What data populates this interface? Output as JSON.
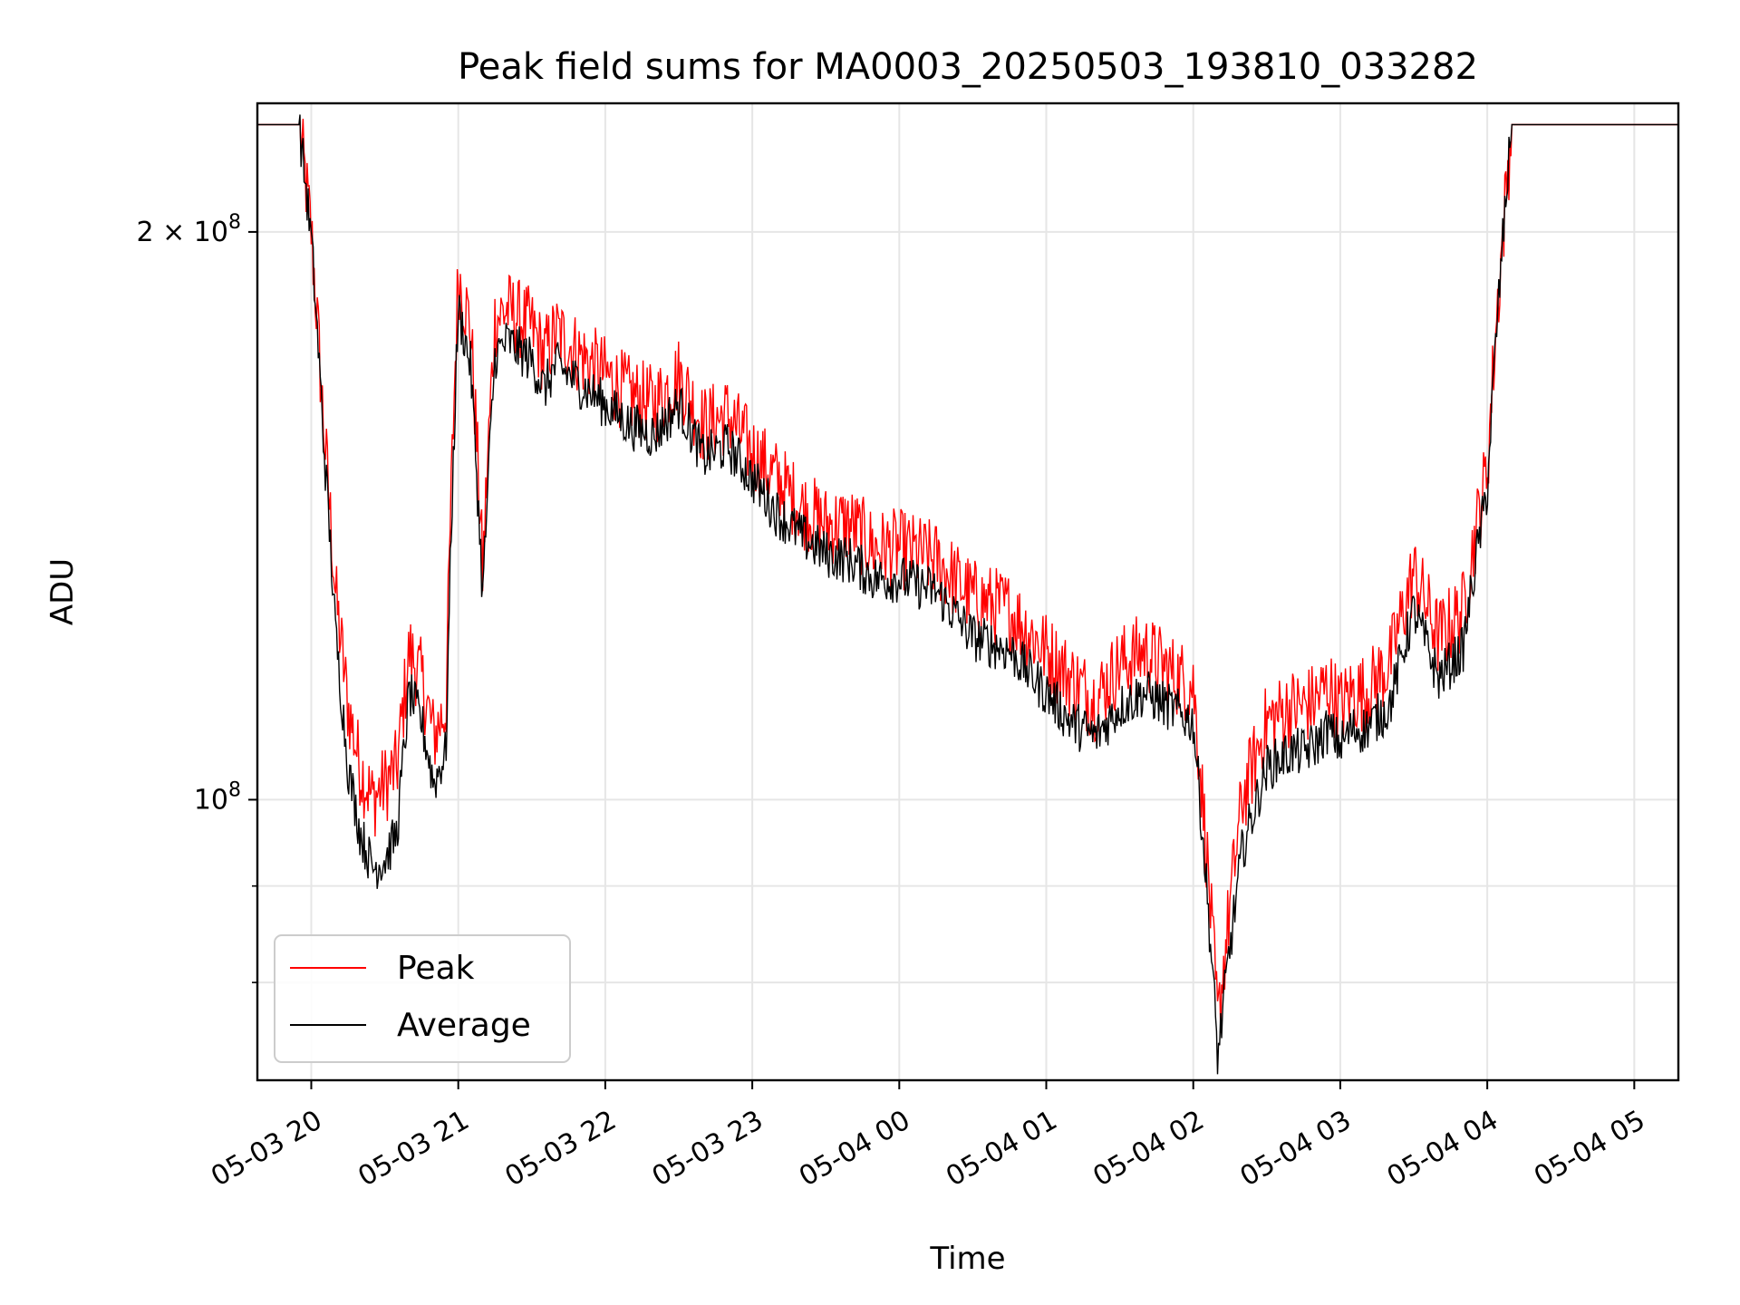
{
  "chart_data": {
    "type": "line",
    "title": "Peak field sums for MA0003_20250503_193810_033282",
    "xlabel": "Time",
    "ylabel": "ADU",
    "yscale": "log",
    "xlim": [
      "2025-05-03 19:38",
      "2025-05-04 05:18"
    ],
    "ylim": [
      71000000,
      234000000
    ],
    "x_ticks": [
      "05-03 20",
      "05-03 21",
      "05-03 22",
      "05-03 23",
      "05-04 00",
      "05-04 01",
      "05-04 02",
      "05-04 03",
      "05-04 04",
      "05-04 05"
    ],
    "y_ticks": [
      {
        "value": 200000000,
        "base": "2 × 10",
        "exp": "8"
      },
      {
        "value": 100000000,
        "base": "10",
        "exp": "8"
      }
    ],
    "y_minor_ticks": [
      80000000,
      90000000
    ],
    "grid": true,
    "legend": "lower-left",
    "series": [
      {
        "name": "Peak",
        "color": "#ff0000",
        "x": [
          "2025-05-03 19:38",
          "2025-05-03 19:55",
          "2025-05-03 20:00",
          "2025-05-03 20:05",
          "2025-05-03 20:10",
          "2025-05-03 20:15",
          "2025-05-03 20:20",
          "2025-05-03 20:25",
          "2025-05-03 20:30",
          "2025-05-03 20:35",
          "2025-05-03 20:40",
          "2025-05-03 20:45",
          "2025-05-03 20:50",
          "2025-05-03 20:55",
          "2025-05-03 21:00",
          "2025-05-03 21:05",
          "2025-05-03 21:10",
          "2025-05-03 21:15",
          "2025-05-03 21:20",
          "2025-05-03 21:25",
          "2025-05-03 21:30",
          "2025-05-03 21:35",
          "2025-05-03 21:40",
          "2025-05-03 21:50",
          "2025-05-03 22:00",
          "2025-05-03 22:10",
          "2025-05-03 22:20",
          "2025-05-03 22:30",
          "2025-05-03 22:40",
          "2025-05-03 22:50",
          "2025-05-03 23:00",
          "2025-05-03 23:10",
          "2025-05-03 23:20",
          "2025-05-03 23:30",
          "2025-05-03 23:40",
          "2025-05-03 23:50",
          "2025-05-04 00:00",
          "2025-05-04 00:15",
          "2025-05-04 00:30",
          "2025-05-04 00:45",
          "2025-05-04 01:00",
          "2025-05-04 01:10",
          "2025-05-04 01:20",
          "2025-05-04 01:30",
          "2025-05-04 01:40",
          "2025-05-04 01:50",
          "2025-05-04 02:00",
          "2025-05-04 02:10",
          "2025-05-04 02:20",
          "2025-05-04 02:30",
          "2025-05-04 02:40",
          "2025-05-04 02:45",
          "2025-05-04 02:50",
          "2025-05-04 02:55",
          "2025-05-04 03:00",
          "2025-05-04 03:05",
          "2025-05-04 03:10",
          "2025-05-04 03:20",
          "2025-05-04 03:30",
          "2025-05-04 03:40",
          "2025-05-04 03:50",
          "2025-05-04 04:00",
          "2025-05-04 04:10",
          "2025-05-04 04:20",
          "2025-05-04 04:25",
          "2025-05-04 04:30",
          "2025-05-04 04:35",
          "2025-05-04 04:40",
          "2025-05-04 04:45",
          "2025-05-04 04:50",
          "2025-05-04 04:55",
          "2025-05-04 05:00",
          "2025-05-04 05:18"
        ],
        "values": [
          228000000,
          228000000,
          200000000,
          158000000,
          128000000,
          112000000,
          104000000,
          100000000,
          102000000,
          104000000,
          120000000,
          116000000,
          108000000,
          112000000,
          190000000,
          178000000,
          132000000,
          180000000,
          182000000,
          180000000,
          178000000,
          172000000,
          177000000,
          172000000,
          168000000,
          164000000,
          162000000,
          168000000,
          158000000,
          160000000,
          153000000,
          148000000,
          143000000,
          140000000,
          140000000,
          136000000,
          136000000,
          134000000,
          128000000,
          126000000,
          120000000,
          116000000,
          113000000,
          118000000,
          120000000,
          117000000,
          115000000,
          76000000,
          100000000,
          110000000,
          112000000,
          112000000,
          113000000,
          115000000,
          112000000,
          114000000,
          114000000,
          118000000,
          132000000,
          122000000,
          126000000,
          150000000,
          228000000,
          228000000,
          228000000,
          228000000,
          228000000,
          228000000,
          228000000,
          228000000,
          228000000,
          228000000,
          228000000
        ]
      },
      {
        "name": "Average",
        "color": "#000000",
        "x": [
          "2025-05-03 19:38",
          "2025-05-03 19:55",
          "2025-05-03 20:00",
          "2025-05-03 20:05",
          "2025-05-03 20:10",
          "2025-05-03 20:15",
          "2025-05-03 20:20",
          "2025-05-03 20:25",
          "2025-05-03 20:30",
          "2025-05-03 20:35",
          "2025-05-03 20:40",
          "2025-05-03 20:45",
          "2025-05-03 20:50",
          "2025-05-03 20:55",
          "2025-05-03 21:00",
          "2025-05-03 21:05",
          "2025-05-03 21:10",
          "2025-05-03 21:15",
          "2025-05-03 21:20",
          "2025-05-03 21:25",
          "2025-05-03 21:30",
          "2025-05-03 21:35",
          "2025-05-03 21:40",
          "2025-05-03 21:50",
          "2025-05-03 22:00",
          "2025-05-03 22:10",
          "2025-05-03 22:20",
          "2025-05-03 22:30",
          "2025-05-03 22:40",
          "2025-05-03 22:50",
          "2025-05-03 23:00",
          "2025-05-03 23:10",
          "2025-05-03 23:20",
          "2025-05-03 23:30",
          "2025-05-03 23:40",
          "2025-05-03 23:50",
          "2025-05-04 00:00",
          "2025-05-04 00:15",
          "2025-05-04 00:30",
          "2025-05-04 00:45",
          "2025-05-04 01:00",
          "2025-05-04 01:10",
          "2025-05-04 01:20",
          "2025-05-04 01:30",
          "2025-05-04 01:40",
          "2025-05-04 01:50",
          "2025-05-04 02:00",
          "2025-05-04 02:10",
          "2025-05-04 02:20",
          "2025-05-04 02:30",
          "2025-05-04 02:40",
          "2025-05-04 02:45",
          "2025-05-04 02:50",
          "2025-05-04 02:55",
          "2025-05-04 03:00",
          "2025-05-04 03:05",
          "2025-05-04 03:10",
          "2025-05-04 03:20",
          "2025-05-04 03:30",
          "2025-05-04 03:40",
          "2025-05-04 03:50",
          "2025-05-04 04:00",
          "2025-05-04 04:10",
          "2025-05-04 04:20",
          "2025-05-04 04:25",
          "2025-05-04 04:30",
          "2025-05-04 04:35",
          "2025-05-04 04:40",
          "2025-05-04 04:45",
          "2025-05-04 04:50",
          "2025-05-04 04:55",
          "2025-05-04 05:00",
          "2025-05-04 05:18"
        ],
        "values": [
          228000000,
          228000000,
          198000000,
          155000000,
          122000000,
          104000000,
          96000000,
          92000000,
          93000000,
          96000000,
          114000000,
          110000000,
          102000000,
          106000000,
          182000000,
          170000000,
          128000000,
          172000000,
          175000000,
          173000000,
          171000000,
          165000000,
          170000000,
          166000000,
          162000000,
          158000000,
          156000000,
          162000000,
          152000000,
          154000000,
          148000000,
          142000000,
          138000000,
          135000000,
          134000000,
          131000000,
          131000000,
          129000000,
          122000000,
          120000000,
          114000000,
          110000000,
          108000000,
          112000000,
          114000000,
          112000000,
          110000000,
          73000000,
          94000000,
          104000000,
          106000000,
          106000000,
          107000000,
          109000000,
          107000000,
          109000000,
          109000000,
          112000000,
          126000000,
          116000000,
          120000000,
          146000000,
          228000000,
          228000000,
          228000000,
          228000000,
          228000000,
          228000000,
          228000000,
          228000000,
          228000000,
          228000000,
          228000000
        ]
      }
    ]
  }
}
